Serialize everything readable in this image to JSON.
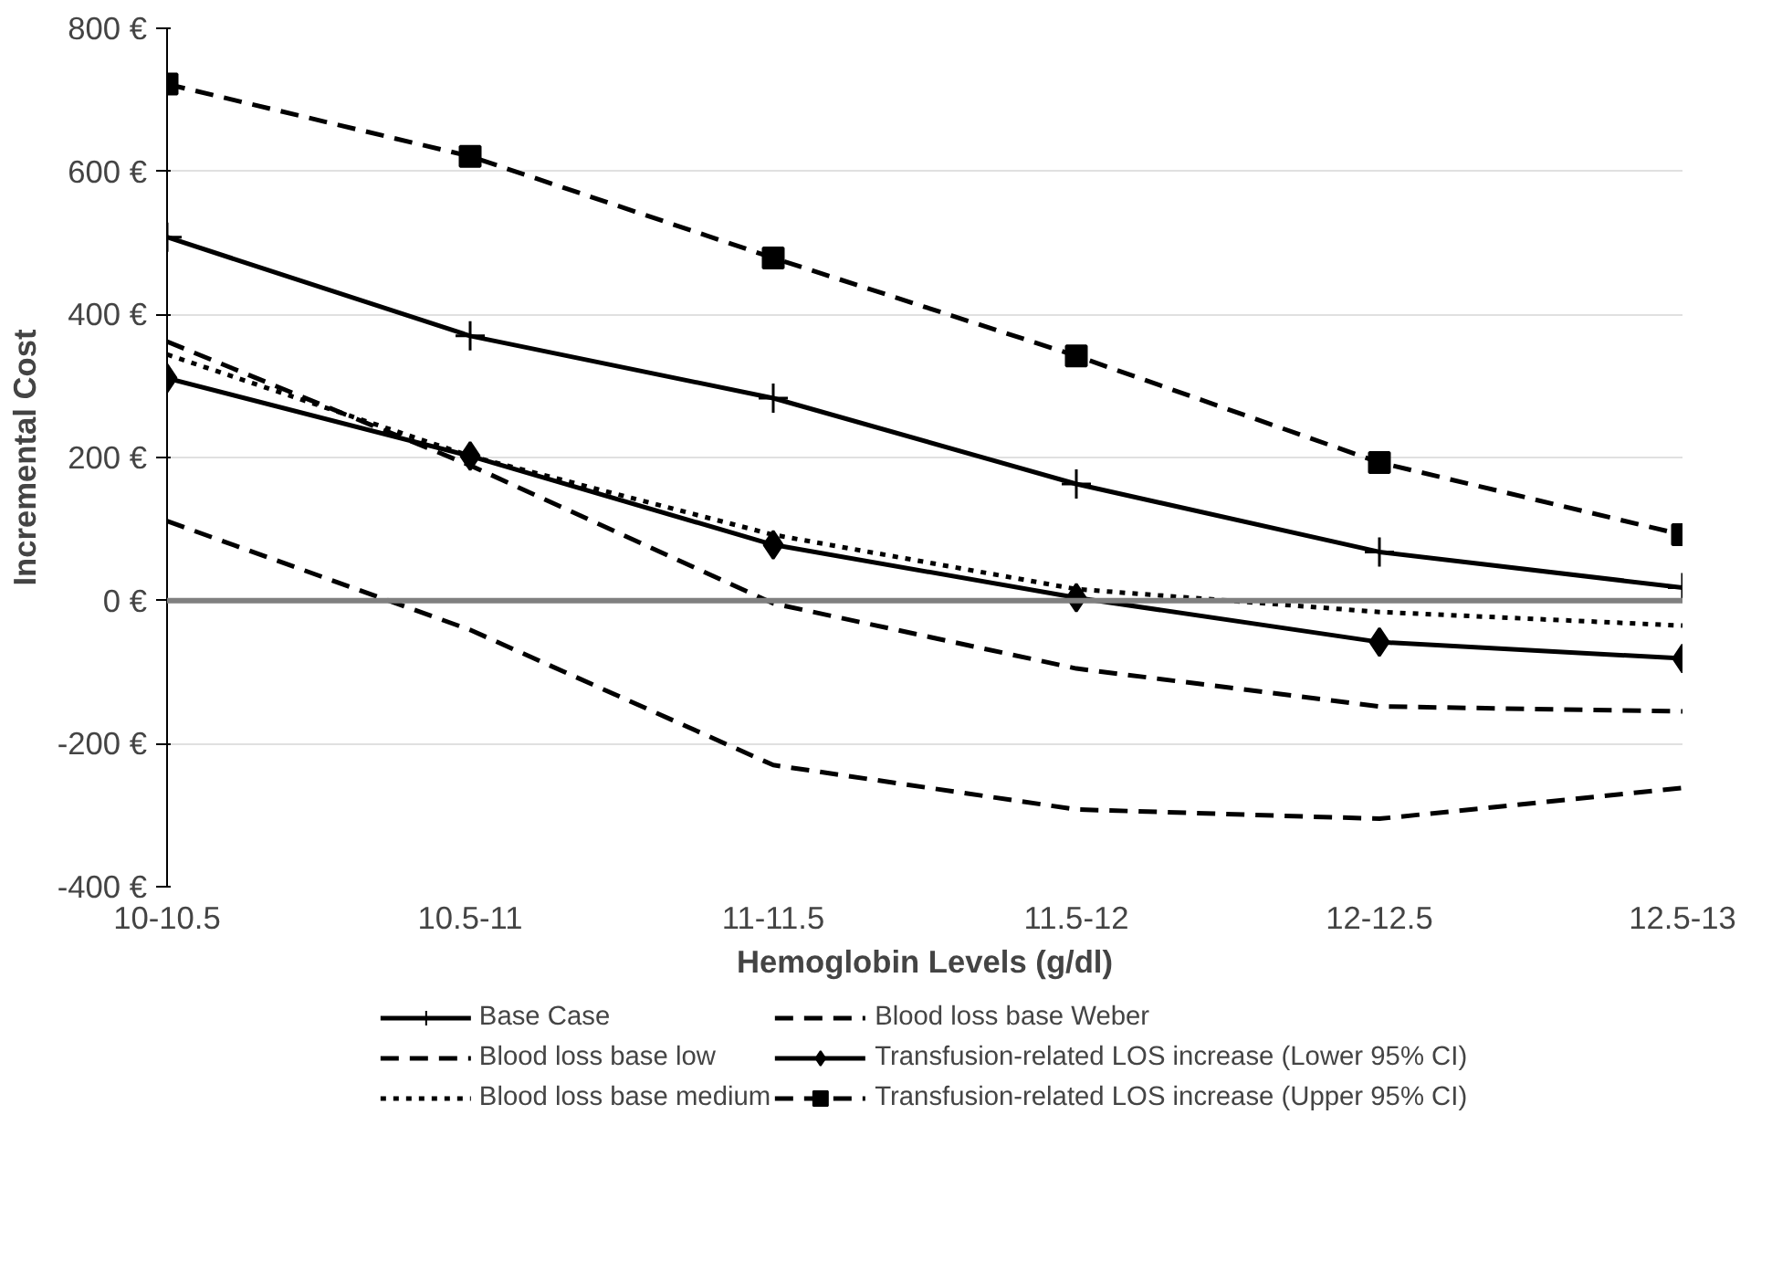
{
  "chart_data": {
    "type": "line",
    "xlabel": "Hemoglobin Levels (g/dl)",
    "ylabel": "Incremental Cost",
    "categories": [
      "10-10.5",
      "10.5-11",
      "11-11.5",
      "11.5-12",
      "12-12.5",
      "12.5-13"
    ],
    "ylim": [
      -400,
      800
    ],
    "yticks": [
      {
        "value": -400,
        "label": "-400 €"
      },
      {
        "value": -200,
        "label": "-200 €"
      },
      {
        "value": 0,
        "label": "0 €"
      },
      {
        "value": 200,
        "label": "200 €"
      },
      {
        "value": 400,
        "label": "400 €"
      },
      {
        "value": 600,
        "label": "600 €"
      },
      {
        "value": 800,
        "label": "800 €"
      }
    ],
    "grid": "y",
    "legend": "bottom",
    "ref_lines": [
      {
        "axis": "y",
        "value": 0,
        "color": "#808080",
        "line_style": "solid"
      }
    ],
    "series": [
      {
        "name": "Base Case",
        "color": "#000000",
        "line_style": "solid",
        "marker": "cross",
        "values": [
          508,
          370,
          283,
          163,
          68,
          18
        ]
      },
      {
        "name": "Blood loss base low",
        "color": "#000000",
        "line_style": "dashed",
        "marker": "none",
        "values": [
          111,
          -41,
          -230,
          -292,
          -305,
          -262
        ]
      },
      {
        "name": "Blood loss base medium",
        "color": "#000000",
        "line_style": "dotted",
        "marker": "none",
        "values": [
          344,
          202,
          92,
          16,
          -16,
          -35
        ]
      },
      {
        "name": "Blood loss base Weber",
        "color": "#000000",
        "line_style": "dashed",
        "marker": "none",
        "values": [
          362,
          189,
          -4,
          -95,
          -148,
          -155
        ]
      },
      {
        "name": "Transfusion-related LOS increase (Lower 95% CI)",
        "color": "#000000",
        "line_style": "solid",
        "marker": "diamond",
        "values": [
          311,
          202,
          78,
          4,
          -58,
          -81
        ]
      },
      {
        "name": "Transfusion-related LOS increase (Upper 95% CI)",
        "color": "#000000",
        "line_style": "dashed",
        "marker": "square",
        "values": [
          722,
          621,
          479,
          342,
          193,
          92
        ]
      }
    ]
  }
}
